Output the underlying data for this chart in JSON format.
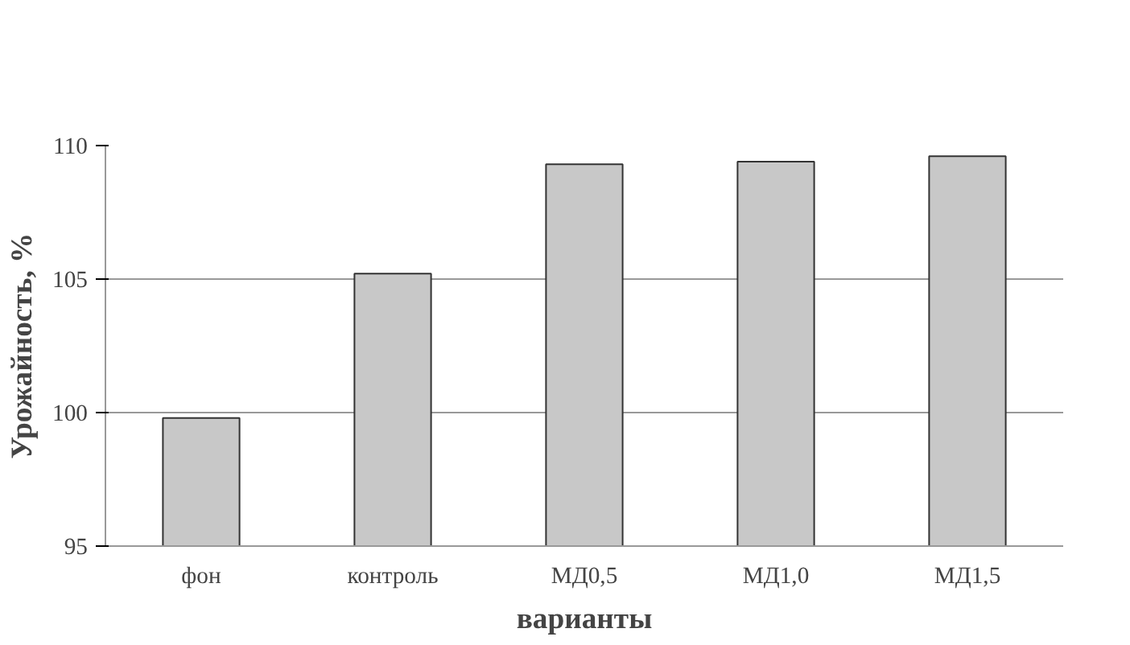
{
  "chart_data": {
    "type": "bar",
    "xlabel": "варианты",
    "ylabel": "Урожайность, %",
    "categories": [
      "фон",
      "контроль",
      "МД0,5",
      "МД1,0",
      "МД1,5"
    ],
    "values": [
      99.8,
      105.2,
      109.3,
      109.4,
      109.6
    ],
    "color": "#c8c8c8",
    "ylim": [
      95,
      110
    ],
    "yticks": [
      95,
      100,
      105,
      110
    ],
    "grid": "y"
  }
}
